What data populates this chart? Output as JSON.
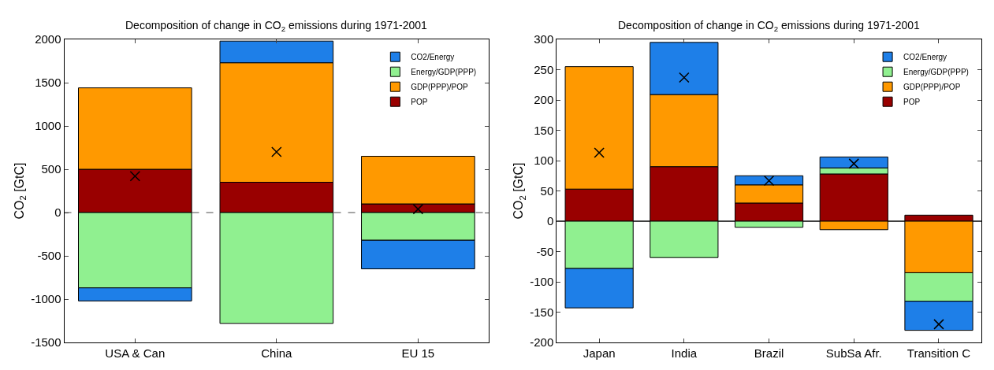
{
  "chart_data": [
    {
      "type": "bar",
      "stacked": true,
      "title": "Decomposition of change in CO$_{2}$ emissions during 1971-2001",
      "ylabel": "CO$_{2}$ [GtC]",
      "categories": [
        "USA & Can",
        "China",
        "EU 15"
      ],
      "ylim": [
        -1500,
        2000
      ],
      "yticks": [
        -1500,
        -1000,
        -500,
        0,
        500,
        1000,
        1500,
        2000
      ],
      "legend": "top right",
      "grid": false,
      "ref_lines": [
        {
          "axis": "y",
          "value": 0,
          "color": "#888888",
          "line_style": "dashed"
        }
      ],
      "series": [
        {
          "name": "POP",
          "color": "#990000",
          "values": [
            500,
            350,
            100
          ]
        },
        {
          "name": "GDP(PPP)/POP",
          "color": "#ff9900",
          "values": [
            940,
            1380,
            550
          ]
        },
        {
          "name": "Energy/GDP(PPP)",
          "color": "#90f090",
          "values": [
            -870,
            -1280,
            -320
          ]
        },
        {
          "name": "CO2/Energy",
          "color": "#1e7fe8",
          "values": [
            -150,
            250,
            -330
          ]
        },
        {
          "type": "scatter",
          "marker": "cross",
          "color": "#000000",
          "values": [
            420,
            700,
            40
          ]
        }
      ]
    },
    {
      "type": "bar",
      "stacked": true,
      "title": "Decomposition of change in CO$_{2}$ emissions during 1971-2001",
      "ylabel": "CO$_{2}$ [GtC]",
      "categories": [
        "Japan",
        "India",
        "Brazil",
        "SubSa Afr.",
        "Transition C"
      ],
      "ylim": [
        -200,
        300
      ],
      "yticks": [
        -200,
        -150,
        -100,
        -50,
        0,
        50,
        100,
        150,
        200,
        250,
        300
      ],
      "legend": "top right",
      "grid": false,
      "ref_lines": [
        {
          "axis": "y",
          "value": 0,
          "color": "#000000",
          "line_style": "solid"
        }
      ],
      "series": [
        {
          "name": "POP",
          "color": "#990000",
          "values": [
            53,
            90,
            30,
            78,
            10
          ]
        },
        {
          "name": "GDP(PPP)/POP",
          "color": "#ff9900",
          "values": [
            202,
            119,
            30,
            -14,
            -85
          ]
        },
        {
          "name": "Energy/GDP(PPP)",
          "color": "#90f090",
          "values": [
            -78,
            -60,
            -10,
            10,
            -47
          ]
        },
        {
          "name": "CO2/Energy",
          "color": "#1e7fe8",
          "values": [
            -65,
            86,
            15,
            18,
            -48
          ]
        },
        {
          "type": "scatter",
          "marker": "cross",
          "color": "#000000",
          "values": [
            113,
            237,
            67,
            95,
            -170
          ]
        }
      ]
    }
  ]
}
